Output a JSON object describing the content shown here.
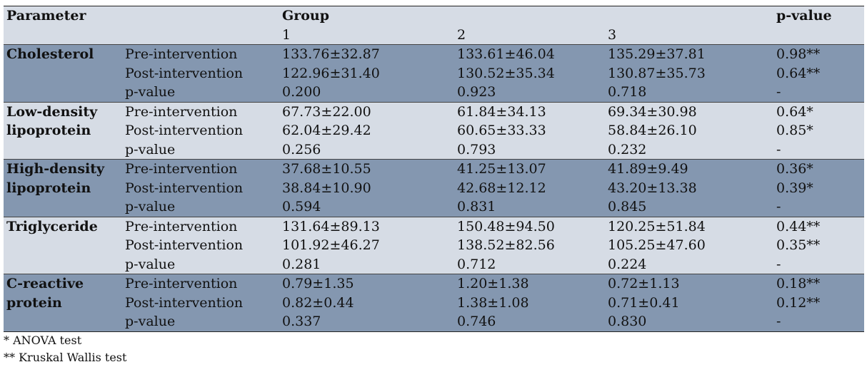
{
  "header": {
    "parameter": "Parameter",
    "group": "Group",
    "pvalue": "p-value",
    "g1": "1",
    "g2": "2",
    "g3": "3"
  },
  "blocks": [
    {
      "name_line1": "Cholesterol",
      "name_line2": "",
      "rows": [
        {
          "label": "Pre-intervention",
          "g1": "133.76±32.87",
          "g2": "133.61±46.04",
          "g3": "135.29±37.81",
          "p": "0.98**"
        },
        {
          "label": "Post-intervention",
          "g1": "122.96±31.40",
          "g2": "130.52±35.34",
          "g3": "130.87±35.73",
          "p": "0.64**"
        },
        {
          "label": "p-value",
          "g1": "0.200",
          "g2": "0.923",
          "g3": "0.718",
          "p": "-"
        }
      ]
    },
    {
      "name_line1": "Low-density",
      "name_line2": "lipoprotein",
      "rows": [
        {
          "label": "Pre-intervention",
          "g1": "67.73±22.00",
          "g2": "61.84±34.13",
          "g3": "69.34±30.98",
          "p": "0.64*"
        },
        {
          "label": "Post-intervention",
          "g1": "62.04±29.42",
          "g2": "60.65±33.33",
          "g3": "58.84±26.10",
          "p": "0.85*"
        },
        {
          "label": "p-value",
          "g1": "0.256",
          "g2": "0.793",
          "g3": "0.232",
          "p": "-"
        }
      ]
    },
    {
      "name_line1": "High-density",
      "name_line2": "lipoprotein",
      "rows": [
        {
          "label": "Pre-intervention",
          "g1": "37.68±10.55",
          "g2": "41.25±13.07",
          "g3": "41.89±9.49",
          "p": "0.36*"
        },
        {
          "label": "Post-intervention",
          "g1": "38.84±10.90",
          "g2": "42.68±12.12",
          "g3": "43.20±13.38",
          "p": "0.39*"
        },
        {
          "label": "p-value",
          "g1": "0.594",
          "g2": "0.831",
          "g3": "0.845",
          "p": "-"
        }
      ]
    },
    {
      "name_line1": "Triglyceride",
      "name_line2": "",
      "rows": [
        {
          "label": "Pre-intervention",
          "g1": "131.64±89.13",
          "g2": "150.48±94.50",
          "g3": "120.25±51.84",
          "p": "0.44**"
        },
        {
          "label": "Post-intervention",
          "g1": "101.92±46.27",
          "g2": "138.52±82.56",
          "g3": "105.25±47.60",
          "p": "0.35**"
        },
        {
          "label": "p-value",
          "g1": "0.281",
          "g2": "0.712",
          "g3": "0.224",
          "p": "-"
        }
      ]
    },
    {
      "name_line1": "C-reactive",
      "name_line2": "protein",
      "rows": [
        {
          "label": "Pre-intervention",
          "g1": "0.79±1.35",
          "g2": "1.20±1.38",
          "g3": "0.72±1.13",
          "p": "0.18**"
        },
        {
          "label": "Post-intervention",
          "g1": "0.82±0.44",
          "g2": "1.38±1.08",
          "g3": "0.71±0.41",
          "p": "0.12**"
        },
        {
          "label": "p-value",
          "g1": "0.337",
          "g2": "0.746",
          "g3": "0.830",
          "p": "-"
        }
      ]
    }
  ],
  "notes": [
    "* ANOVA test",
    "** Kruskal Wallis test"
  ],
  "colors": {
    "header_bg": "#d6dce5",
    "dark_bg": "#8497b0",
    "light_bg": "#d6dce5"
  }
}
